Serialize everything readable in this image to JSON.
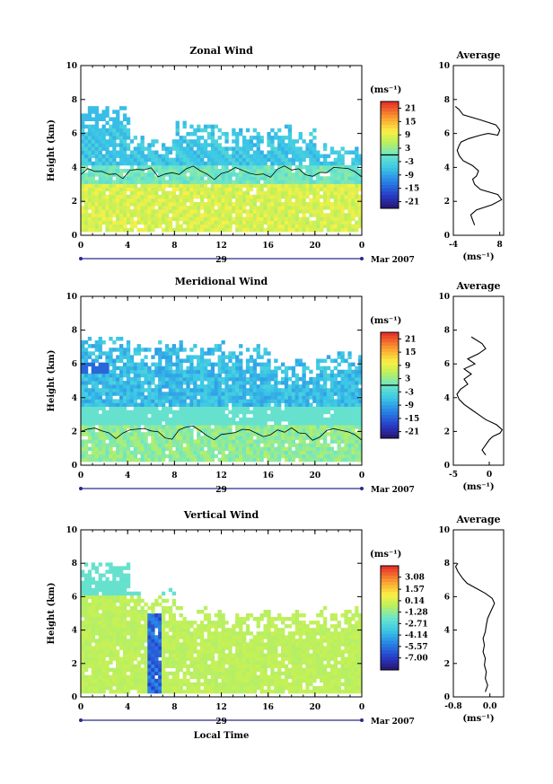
{
  "chart_data": [
    {
      "type": "heatmap",
      "title": "Zonal Wind",
      "ylabel": "Height (km)",
      "ylim": [
        0,
        10
      ],
      "yticks": [
        "0",
        "2",
        "4",
        "6",
        "8",
        "10"
      ],
      "xticks": [
        "0",
        "4",
        "8",
        "12",
        "16",
        "20",
        "0"
      ],
      "date_day": "29",
      "date_label": "Mar 2007",
      "colorbar": {
        "unit": "(ms⁻¹)",
        "range": [
          -24,
          24
        ],
        "ticks": [
          "21",
          "15",
          "9",
          "3",
          "-3",
          "-9",
          "-15",
          "-21"
        ],
        "zero_value": 0
      },
      "profile": {
        "title": "Average",
        "xlabel": "(ms⁻¹)",
        "xlim": [
          -4,
          9
        ],
        "xticks": [
          "-4",
          "8"
        ],
        "x": [
          1.5,
          1.0,
          0.5,
          2.0,
          6.0,
          8.5,
          7.5,
          3.0,
          1.5,
          1.0,
          2.0,
          2.5,
          1.0,
          -1.5,
          -2.5,
          -3.0,
          -2.5,
          -2.0,
          0.0,
          3.0,
          5.0,
          7.5,
          8.0,
          7.0,
          3.0,
          -1.5,
          -2.5,
          -3.5
        ],
        "y": [
          0.6,
          0.9,
          1.2,
          1.5,
          1.8,
          2.1,
          2.4,
          2.7,
          3.0,
          3.3,
          3.5,
          3.8,
          4.1,
          4.4,
          4.7,
          5.0,
          5.3,
          5.5,
          5.7,
          5.9,
          6.0,
          5.9,
          6.2,
          6.5,
          6.8,
          7.1,
          7.4,
          7.6
        ]
      }
    },
    {
      "type": "heatmap",
      "title": "Meridional Wind",
      "ylabel": "Height (km)",
      "ylim": [
        0,
        10
      ],
      "yticks": [
        "0",
        "2",
        "4",
        "6",
        "8",
        "10"
      ],
      "xticks": [
        "0",
        "4",
        "8",
        "12",
        "16",
        "20",
        "0"
      ],
      "date_day": "29",
      "date_label": "Mar 2007",
      "colorbar": {
        "unit": "(ms⁻¹)",
        "range": [
          -24,
          24
        ],
        "ticks": [
          "21",
          "15",
          "9",
          "3",
          "-3",
          "-9",
          "-15",
          "-21"
        ],
        "zero_value": 0
      },
      "profile": {
        "title": "Average",
        "xlabel": "(ms⁻¹)",
        "xlim": [
          -5,
          2
        ],
        "xticks": [
          "-5",
          "0"
        ],
        "x": [
          -0.5,
          -1.0,
          -0.5,
          0.0,
          0.5,
          1.5,
          1.8,
          1.0,
          -0.5,
          -1.5,
          -2.5,
          -3.5,
          -4.2,
          -4.5,
          -4.0,
          -3.0,
          -3.5,
          -2.5,
          -3.5,
          -2.0,
          -3.0,
          -1.5,
          -0.5,
          -1.0,
          -2.5
        ],
        "y": [
          0.6,
          0.9,
          1.2,
          1.5,
          1.7,
          1.9,
          2.1,
          2.4,
          2.7,
          3.0,
          3.3,
          3.6,
          3.9,
          4.2,
          4.5,
          4.8,
          5.1,
          5.4,
          5.7,
          6.0,
          6.3,
          6.6,
          6.9,
          7.2,
          7.6
        ]
      }
    },
    {
      "type": "heatmap",
      "title": "Vertical Wind",
      "ylabel": "Height (km)",
      "xlabel": "Local Time",
      "ylim": [
        0,
        10
      ],
      "yticks": [
        "0",
        "2",
        "4",
        "6",
        "8",
        "10"
      ],
      "xticks": [
        "0",
        "4",
        "8",
        "12",
        "16",
        "20",
        "0"
      ],
      "date_day": "29",
      "date_label": "Mar 2007",
      "colorbar": {
        "unit": "(ms⁻¹)",
        "range": [
          -8.5,
          4.5
        ],
        "ticks": [
          "3.08",
          "1.57",
          "0.14",
          "-1.28",
          "-2.71",
          "-4.14",
          "-5.57",
          "-7.00"
        ]
      },
      "profile": {
        "title": "Average",
        "xlabel": "(ms⁻¹)",
        "xlim": [
          -0.8,
          0.3
        ],
        "xticks": [
          "-0.8",
          "0.0"
        ],
        "x": [
          -0.1,
          -0.05,
          -0.1,
          -0.08,
          -0.12,
          -0.1,
          -0.15,
          -0.12,
          -0.15,
          -0.1,
          -0.08,
          -0.05,
          0.0,
          0.05,
          0.1,
          0.05,
          -0.1,
          -0.3,
          -0.5,
          -0.6,
          -0.7,
          -0.75,
          -0.7
        ],
        "y": [
          0.3,
          0.7,
          1.1,
          1.5,
          1.9,
          2.3,
          2.7,
          3.1,
          3.5,
          3.9,
          4.3,
          4.7,
          5.0,
          5.3,
          5.6,
          5.9,
          6.2,
          6.5,
          6.8,
          7.1,
          7.5,
          7.8,
          8.0
        ]
      }
    }
  ]
}
